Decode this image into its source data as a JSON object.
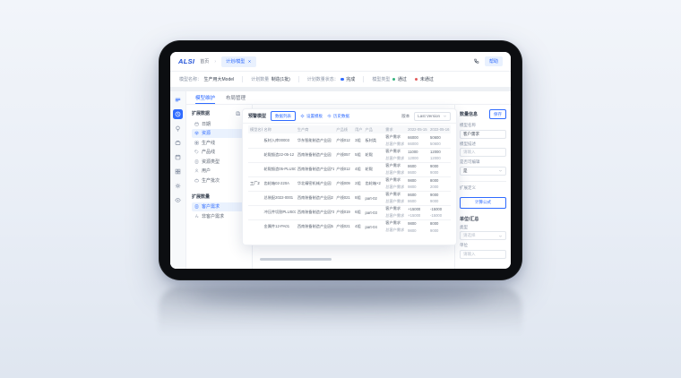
{
  "topbar": {
    "logo": "ALSI",
    "breadcrumb": "首页",
    "tab_label": "计划/模型",
    "help_label": "帮助"
  },
  "infobar": {
    "segments": [
      {
        "label": "模型名称：",
        "value": "生产用大Model",
        "dot": ""
      },
      {
        "label": "计划数量",
        "value": "制造(1批)",
        "dot": ""
      },
      {
        "label": "计划数量状态：",
        "value": "完成",
        "dot": "#2f6bff"
      },
      {
        "label": "模型类型",
        "value": "通过",
        "dot": "#34b37e"
      },
      {
        "label": "",
        "value": "未通过",
        "dot": "#e25c5c"
      }
    ]
  },
  "subtabs": [
    {
      "label": "模型维护",
      "active": true
    },
    {
      "label": "布局管理",
      "active": false
    }
  ],
  "rail": [
    {
      "name": "menu-icon",
      "active": false
    },
    {
      "name": "clock-icon",
      "active": true
    },
    {
      "name": "bulb-icon",
      "active": false
    },
    {
      "name": "briefcase-icon",
      "active": false
    },
    {
      "name": "calendar-icon",
      "active": false
    },
    {
      "name": "grid-icon",
      "active": false
    },
    {
      "name": "gear-icon",
      "active": false
    },
    {
      "name": "eye-icon",
      "active": false
    }
  ],
  "tree": {
    "section1": {
      "title": "扩展数据",
      "header_icons": [
        "save-icon",
        "eye-icon"
      ],
      "items": [
        {
          "label": "日期",
          "icon": "calendar-icon",
          "selected": false,
          "deletable": false
        },
        {
          "label": "资源",
          "icon": "box-icon",
          "selected": true,
          "deletable": true
        },
        {
          "label": "生产线",
          "icon": "grid-icon",
          "selected": false,
          "deletable": true
        },
        {
          "label": "产品线",
          "icon": "tag-icon",
          "selected": false,
          "deletable": true
        },
        {
          "label": "资源类型",
          "icon": "doc-icon",
          "selected": false,
          "deletable": true
        },
        {
          "label": "用户",
          "icon": "user-icon",
          "selected": false,
          "deletable": true
        },
        {
          "label": "生产批次",
          "icon": "briefcase-icon",
          "selected": false,
          "deletable": true
        }
      ]
    },
    "section2": {
      "title": "扩展数量",
      "header_icons": [
        "plus-icon"
      ],
      "items": [
        {
          "label": "客户需求",
          "icon": "doc-icon",
          "selected": true,
          "deletable": false
        },
        {
          "label": "非客户需求",
          "icon": "fx-icon",
          "selected": false,
          "deletable": false
        }
      ]
    }
  },
  "card": {
    "title": "预警模型",
    "tabs": [
      {
        "label": "数据列表",
        "active": true,
        "icon": ""
      },
      {
        "label": "设置模板",
        "active": false,
        "icon": "gear-icon"
      },
      {
        "label": "历史数据",
        "active": false,
        "icon": "history-icon"
      }
    ],
    "version_label": "版本",
    "version_value": "Last Version",
    "table": {
      "columns": [
        "模型名称",
        "名称",
        "生产商",
        "产品线",
        "用户",
        "产品",
        "需求",
        "2022-05-15",
        "2022-05-16"
      ],
      "groups": [
        {
          "factory": "",
          "name": "板材入库00003",
          "site": "华东智能制造产业园",
          "line": "产线012",
          "user": "3组",
          "product": "板材类",
          "demands": [
            {
              "type": "客户需求",
              "d1": "66000",
              "d2": "50600"
            },
            {
              "type": "总客户需求",
              "d1": "66000",
              "d2": "50600"
            }
          ]
        },
        {
          "factory": "",
          "name": "轮毂锻造22-05-12",
          "site": "西南装备制造产业园",
          "line": "产线057",
          "user": "5组",
          "product": "轮毂",
          "demands": [
            {
              "type": "客户需求",
              "d1": "11000",
              "d2": "12000"
            },
            {
              "type": "总客户需求",
              "d1": "12000",
              "d2": "12000"
            }
          ]
        },
        {
          "factory": "",
          "name": "轮毂锻造05-PLUS01",
          "site": "西南装备制造产业园*1",
          "line": "产线012",
          "user": "4组",
          "product": "轮毂",
          "demands": [
            {
              "type": "客户需求",
              "d1": "8600",
              "d2": "9000"
            },
            {
              "type": "总客户需求",
              "d1": "8600",
              "d2": "9000"
            }
          ]
        },
        {
          "factory": "工厂2",
          "name": "齿轮箱02-220A",
          "site": "华北精密机械产业园",
          "line": "产线009",
          "user": "2组",
          "product": "齿轮箱×2",
          "demands": [
            {
              "type": "客户需求",
              "d1": "9800",
              "d2": "8000"
            },
            {
              "type": "总客户需求",
              "d1": "9800",
              "d2": "2000"
            }
          ]
        },
        {
          "factory": "",
          "name": "总装配2022-0001",
          "site": "西南装备制造产业园2",
          "line": "产线021",
          "user": "8组",
          "product": "part-02",
          "demands": [
            {
              "type": "客户需求",
              "d1": "8600",
              "d2": "9000"
            },
            {
              "type": "总客户需求",
              "d1": "8600",
              "d2": "9000"
            }
          ]
        },
        {
          "factory": "",
          "name": "冲压件切割PLUS03",
          "site": "西南装备制造产业园*3",
          "line": "产线019",
          "user": "6组",
          "product": "part-03",
          "demands": [
            {
              "type": "客户需求",
              "d1": "+15000",
              "d2": "-15000"
            },
            {
              "type": "总客户需求",
              "d1": "+15000",
              "d2": "-15000"
            }
          ]
        },
        {
          "factory": "",
          "name": "金属件12-PA01",
          "site": "西南装备制造产业园5",
          "line": "产线021",
          "user": "4组",
          "product": "part-04",
          "demands": [
            {
              "type": "客户需求",
              "d1": "9800",
              "d2": "8000"
            },
            {
              "type": "总客户需求",
              "d1": "9800",
              "d2": "9000"
            }
          ]
        }
      ]
    }
  },
  "panel": {
    "title": "数量信息",
    "save_label": "保存",
    "fields": [
      {
        "label": "模型名称",
        "control": "input",
        "value": "客户需求",
        "placeholder": ""
      },
      {
        "label": "模型描述",
        "control": "input",
        "value": "",
        "placeholder": "请输入"
      },
      {
        "label": "是否可编辑",
        "control": "select",
        "value": "是",
        "placeholder": ""
      }
    ],
    "ext_label": "扩展定义",
    "formula_label": "计算公式",
    "unit_section": "单位/汇总",
    "fields2": [
      {
        "label": "类型",
        "control": "select",
        "value": "",
        "placeholder": "请选择"
      },
      {
        "label": "单位",
        "control": "input",
        "value": "",
        "placeholder": "请输入"
      }
    ]
  },
  "colors": {
    "primary": "#2f6bff",
    "logo_blue": "#1d4fd7",
    "danger": "#e25c5c",
    "success": "#34b37e"
  }
}
